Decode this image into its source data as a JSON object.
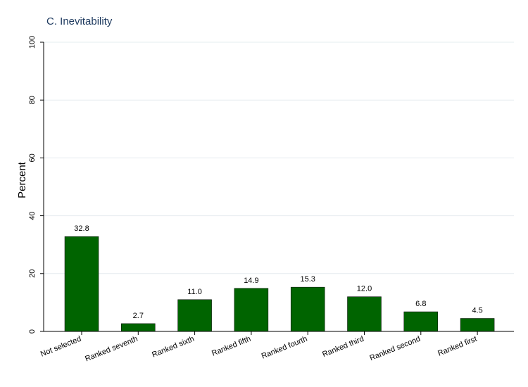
{
  "chart_data": {
    "type": "bar",
    "title": "C. Inevitability",
    "xlabel": "",
    "ylabel": "Percent",
    "categories": [
      "Not selected",
      "Ranked seventh",
      "Ranked sixth",
      "Ranked fifth",
      "Ranked fourth",
      "Ranked third",
      "Ranked second",
      "Ranked first"
    ],
    "values": [
      32.8,
      2.7,
      11.0,
      14.9,
      15.3,
      12.0,
      6.8,
      4.5
    ],
    "value_labels": [
      "32.8",
      "2.7",
      "11.0",
      "14.9",
      "15.3",
      "12.0",
      "6.8",
      "4.5"
    ],
    "ylim": [
      0,
      100
    ],
    "yticks": [
      0,
      20,
      40,
      60,
      80,
      100
    ],
    "ytick_labels": [
      "0",
      "20",
      "40",
      "60",
      "80",
      "100"
    ],
    "grid": true,
    "legend": "none",
    "colors": {
      "bar": "#006400",
      "title": "#1e3a5f",
      "grid": "#e6ecef",
      "axis": "#000000",
      "text": "#000000"
    }
  }
}
